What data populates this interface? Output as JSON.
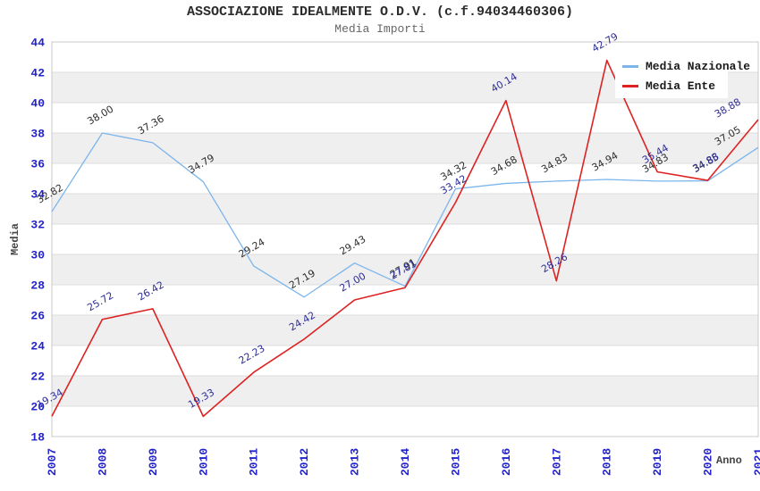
{
  "chart_data": {
    "type": "line",
    "title": "ASSOCIAZIONE IDEALMENTE O.D.V. (c.f.94034460306)",
    "subtitle": "Media Importi",
    "xlabel": "Anno",
    "ylabel": "Media",
    "categories": [
      "2007",
      "2008",
      "2009",
      "2010",
      "2011",
      "2012",
      "2013",
      "2014",
      "2015",
      "2016",
      "2017",
      "2018",
      "2019",
      "2020",
      "2021"
    ],
    "ylim": [
      18,
      44
    ],
    "yticks": [
      18,
      20,
      22,
      24,
      26,
      28,
      30,
      32,
      34,
      36,
      38,
      40,
      42,
      44
    ],
    "grid": "horizontal gridlines every 2 units with alternating light-gray bands",
    "legend_position": "top-right",
    "series": [
      {
        "name": "Media Nazionale",
        "color": "#7cb5ec",
        "label_color": "#2e2e2e",
        "label_weight": "normal",
        "values": [
          32.82,
          38.0,
          37.36,
          34.79,
          29.24,
          27.19,
          29.43,
          27.91,
          34.32,
          34.68,
          34.83,
          34.94,
          34.83,
          34.85,
          37.05
        ],
        "labels": [
          "32.82",
          "38.00",
          "37.36",
          "34.79",
          "29.24",
          "27.19",
          "29.43",
          "27.91",
          "34.32",
          "34.68",
          "34.83",
          "34.94",
          "34.83",
          "34.85",
          "37.05"
        ]
      },
      {
        "name": "Media Ente",
        "color": "#dd2222",
        "label_color": "#2d2d99",
        "label_weight": "bold",
        "values": [
          19.34,
          25.72,
          26.42,
          19.33,
          22.23,
          24.42,
          27.0,
          27.81,
          33.42,
          40.14,
          28.26,
          42.79,
          35.44,
          34.88,
          38.88
        ],
        "labels": [
          "19.34",
          "25.72",
          "26.42",
          "19.33",
          "22.23",
          "24.42",
          "27.00",
          "27.81",
          "33.42",
          "40.14",
          "28.26",
          "42.79",
          "35.44",
          "34.88",
          "38.88"
        ]
      }
    ],
    "colors": {
      "tick_label": "#2323cc",
      "axis_title": "#444444",
      "band": "#efefef",
      "gridline": "#dcdcdc",
      "plot_border": "#c8c8c8",
      "title_text": "#2b2b2b",
      "subtitle_text": "#666666"
    }
  }
}
